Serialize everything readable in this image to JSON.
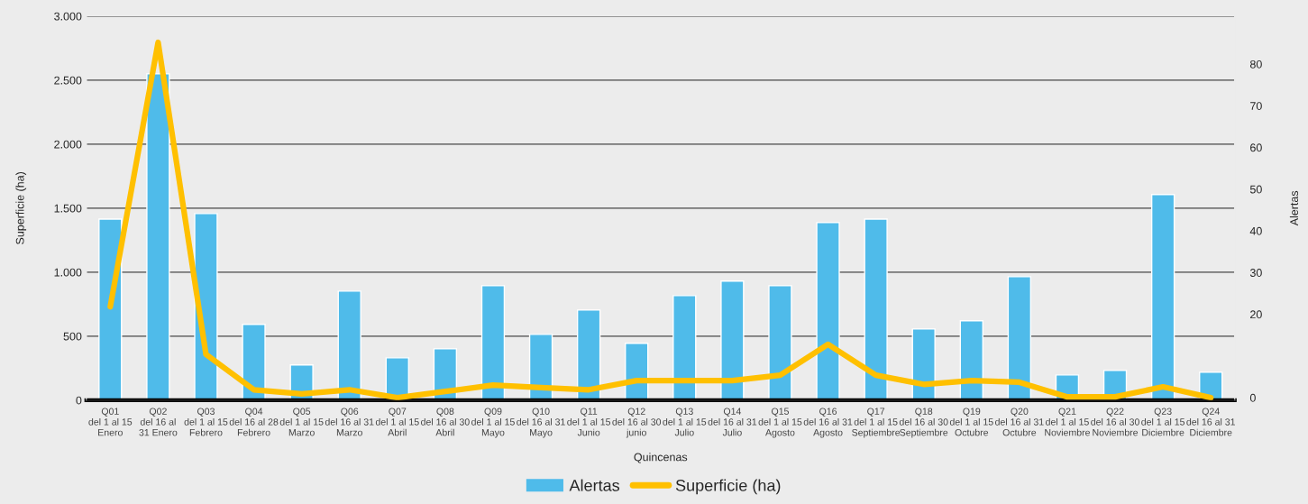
{
  "chart_data": {
    "type": "bar",
    "xlabel": "Quincenas",
    "ylabel": "Superficie (ha)",
    "y2label": "Alertas",
    "categories": [
      "Q01\ndel 1 al 15\nEnero",
      "Q02\ndel 16 al\n31 Enero",
      "Q03\ndel 1 al 15\nFebrero",
      "Q04\ndel 16 al 28\nFebrero",
      "Q05\ndel 1 al 15\nMarzo",
      "Q06\ndel 16 al 31\nMarzo",
      "Q07\ndel 1 al 15\nAbril",
      "Q08\ndel 16 al 30\nAbril",
      "Q09\ndel 1 al 15\nMayo",
      "Q10\ndel 16 al 31\nMayo",
      "Q11\ndel 1 al 15\nJunio",
      "Q12\ndel 16 al 30\njunio",
      "Q13\ndel 1 al 15\nJulio",
      "Q14\ndel 16 al 31\nJulio",
      "Q15\ndel 1 al 15\nAgosto",
      "Q16\ndel 16 al 31\nAgosto",
      "Q17\ndel 1 al 15\nSeptiembre",
      "Q18\ndel 16 al 30\nSeptiembre",
      "Q19\ndel 1 al 15\nOctubre",
      "Q20\ndel 16 al 31\nOctubre",
      "Q21\ndel 1 al 15\nNoviembre",
      "Q22\ndel 16 al 30\nNoviembre",
      "Q23\ndel 1 al 15\nDiciembre",
      "Q24\ndel 16 al 31\nDiciembre"
    ],
    "series": [
      {
        "name": "Alertas",
        "color": "#4fbbea",
        "values": [
          1415,
          2549,
          1458,
          592,
          275,
          852,
          331,
          401,
          894,
          514,
          704,
          444,
          817,
          930,
          894,
          1387,
          1415,
          556,
          620,
          965,
          197,
          232,
          1606,
          218
        ]
      },
      {
        "name": "Superficie (ha)",
        "type": "line",
        "axis": "y2",
        "color": "#ffc000",
        "values": [
          21.8,
          85.2,
          10.4,
          1.9,
          0.9,
          1.9,
          0,
          1.5,
          3.0,
          2.4,
          1.9,
          4.1,
          4.1,
          4.1,
          5.4,
          12.8,
          5.4,
          3.2,
          4.1,
          3.7,
          0.2,
          0.2,
          2.6,
          0
        ]
      }
    ],
    "ylim": [
      0,
      3000
    ],
    "yticks": [
      0,
      500,
      {
        "value": 1000,
        "label": "1.000"
      },
      {
        "value": 1500,
        "label": "1.500"
      },
      {
        "value": 2000,
        "label": "2.000"
      },
      {
        "value": 2500,
        "label": "2.500"
      },
      {
        "value": 3000,
        "label": "3.000"
      }
    ],
    "y2lim": [
      -0.6,
      91.5
    ],
    "y2ticks": [
      0,
      20,
      30,
      40,
      50,
      60,
      70,
      80
    ],
    "grid": "y",
    "legend": "bottom",
    "marker": "none",
    "line_style": "solid"
  }
}
